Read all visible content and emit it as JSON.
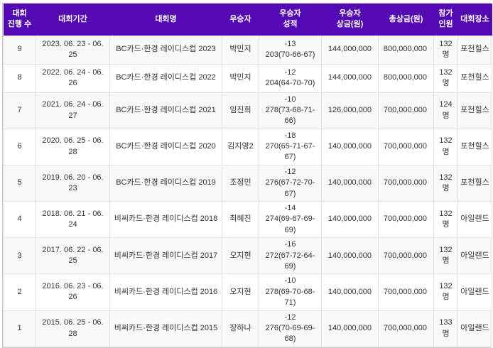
{
  "colors": {
    "header_bg": "#5408b2",
    "header_text": "#ffffff"
  },
  "table": {
    "columns": [
      {
        "key": "count",
        "label": "대회\n진행 수"
      },
      {
        "key": "period",
        "label": "대회기간"
      },
      {
        "key": "name",
        "label": "대회명"
      },
      {
        "key": "winner",
        "label": "우승자"
      },
      {
        "key": "score",
        "label": "우승자\n성적"
      },
      {
        "key": "winner_prize",
        "label": "우승자\n상금(원)"
      },
      {
        "key": "total_prize",
        "label": "총상금(원)"
      },
      {
        "key": "participants",
        "label": "참가\n인원"
      },
      {
        "key": "venue",
        "label": "대회장소"
      }
    ],
    "rows": [
      {
        "cells": [
          "9",
          "2023. 06. 23 - 06. 25",
          "BC카드·한경 레이디스컵 2023",
          "박민지",
          "-13\n203(70-66-67)",
          "144,000,000",
          "800,000,000",
          "132\n명",
          "포천힐스"
        ]
      },
      {
        "cells": [
          "8",
          "2022. 06. 24 - 06. 26",
          "BC카드·한경 레이디스컵 2022",
          "박민지",
          "-12\n204(64-70-70)",
          "144,000,000",
          "800,000,000",
          "132\n명",
          "포천힐스"
        ]
      },
      {
        "cells": [
          "7",
          "2021. 06. 24 - 06. 27",
          "BC카드·한경 레이디스컵 2021",
          "임진희",
          "-10\n278(73-68-71-66)",
          "126,000,000",
          "700,000,000",
          "124\n명",
          "포천힐스"
        ]
      },
      {
        "cells": [
          "6",
          "2020. 06. 25 - 06. 28",
          "BC카드·한경 레이디스컵 2020",
          "김지영2",
          "-18\n270(65-71-67-67)",
          "140,000,000",
          "700,000,000",
          "132\n명",
          "포천힐스"
        ]
      },
      {
        "cells": [
          "5",
          "2019. 06. 20 - 06. 23",
          "BC카드·한경 레이디스컵 2019",
          "조정민",
          "-12\n276(67-72-70-67)",
          "140,000,000",
          "700,000,000",
          "132\n명",
          "포천힐스"
        ]
      },
      {
        "cells": [
          "4",
          "2018. 06. 21 - 06. 24",
          "비씨카드·한경 레이디스컵 2018",
          "최혜진",
          "-14\n274(69-67-69-69)",
          "140,000,000",
          "700,000,000",
          "132\n명",
          "아일랜드"
        ]
      },
      {
        "cells": [
          "3",
          "2017. 06. 22 - 06. 25",
          "비씨카드·한경 레이디스컵 2017",
          "오지현",
          "-16\n272(67-72-64-69)",
          "140,000,000",
          "700,000,000",
          "132\n명",
          "아일랜드"
        ]
      },
      {
        "cells": [
          "2",
          "2016. 06. 23 - 06. 26",
          "비씨카드·한경 레이디스컵 2016",
          "오지현",
          "-10\n278(69-70-68-71)",
          "140,000,000",
          "700,000,000",
          "132\n명",
          "아일랜드"
        ]
      },
      {
        "cells": [
          "1",
          "2015. 06. 25 - 06. 28",
          "비씨카드·한경 레이디스컵 2015",
          "장하나",
          "-12\n276(70-69-69-68)",
          "140,000,000",
          "700,000,000",
          "133\n명",
          "아일랜드"
        ]
      }
    ]
  }
}
